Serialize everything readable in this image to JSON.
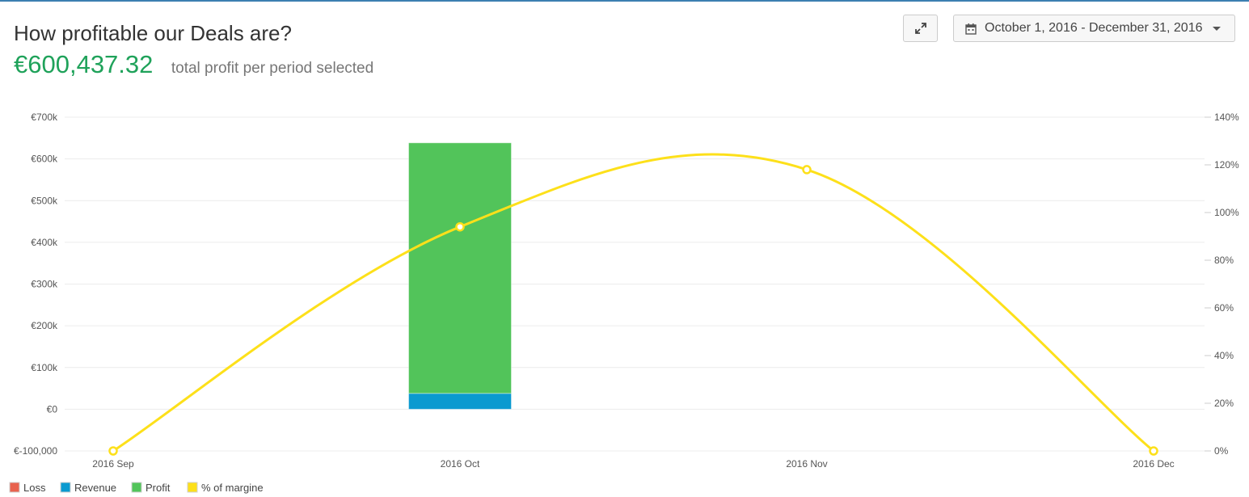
{
  "header": {
    "title": "How profitable our Deals are?",
    "total_value": "€600,437.32",
    "total_caption": "total profit per period selected"
  },
  "toolbar": {
    "expand_icon": "expand-arrows-icon",
    "calendar_icon": "calendar-icon",
    "date_range": "October 1, 2016 - December 31, 2016"
  },
  "chart_data": {
    "type": "bar+line",
    "categories": [
      "2016 Sep",
      "2016 Oct",
      "2016 Nov",
      "2016 Dec"
    ],
    "y_left": {
      "ticks": [
        "€700k",
        "€600k",
        "€500k",
        "€400k",
        "€300k",
        "€200k",
        "€100k",
        "€0",
        "€-100,000"
      ],
      "range": [
        -100000,
        700000
      ]
    },
    "y_right": {
      "ticks": [
        "140%",
        "120%",
        "100%",
        "80%",
        "60%",
        "40%",
        "20%",
        "0%"
      ],
      "range": [
        0,
        140
      ]
    },
    "series": [
      {
        "name": "Loss",
        "kind": "bar",
        "color": "#e8624e",
        "values": [
          0,
          0,
          0,
          0
        ]
      },
      {
        "name": "Revenue",
        "kind": "bar",
        "color": "#0b9ad0",
        "values": [
          0,
          38000,
          0,
          0
        ]
      },
      {
        "name": "Profit",
        "kind": "bar",
        "color": "#52c45a",
        "values": [
          0,
          600437.32,
          0,
          0
        ]
      },
      {
        "name": "% of margine",
        "kind": "line",
        "axis": "right",
        "color": "#fde01a",
        "values": [
          0,
          94,
          118,
          0
        ]
      }
    ],
    "grid": true,
    "legend_position": "bottom-left"
  }
}
